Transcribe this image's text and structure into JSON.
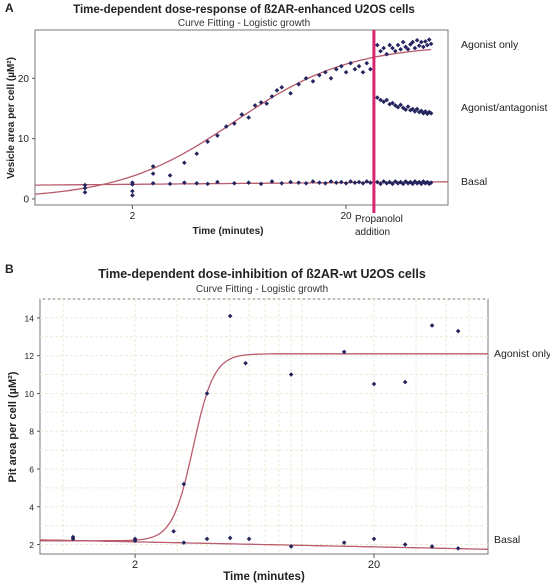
{
  "chart_data": [
    {
      "panel_label": "A",
      "type": "scatter",
      "title": "Time-dependent dose-response of ß2AR-enhanced U2OS cells",
      "subtitle": "Curve Fitting - Logistic growth",
      "xlabel": "Time (minutes)",
      "ylabel": "Vesicle area per cell (µM²)",
      "x_scale": "log",
      "xlim": [
        0.7,
        60
      ],
      "ylim": [
        -1,
        28
      ],
      "x_ticks": [
        2,
        20
      ],
      "y_ticks": [
        0,
        10,
        20
      ],
      "grid": false,
      "marker_color": "#24245e",
      "fit_color": "#b85c6e",
      "event_line": {
        "x": 27,
        "color": "#d6246e",
        "label_line1": "Propanolol",
        "label_line2": "addition"
      },
      "series": [
        {
          "name": "Agonist only",
          "points": [
            [
              1.2,
              1.1
            ],
            [
              1.2,
              2.3
            ],
            [
              2,
              0.6
            ],
            [
              2,
              1.3
            ],
            [
              2,
              2.7
            ],
            [
              2.5,
              4.2
            ],
            [
              2.5,
              5.4
            ],
            [
              3,
              3.9
            ],
            [
              3.5,
              6
            ],
            [
              4,
              7.5
            ],
            [
              4.5,
              9.5
            ],
            [
              5,
              10.5
            ],
            [
              5.5,
              12
            ],
            [
              6,
              12.5
            ],
            [
              6.5,
              14
            ],
            [
              7,
              13.5
            ],
            [
              7.5,
              15.5
            ],
            [
              8,
              16
            ],
            [
              8.5,
              15.8
            ],
            [
              9,
              17
            ],
            [
              9.5,
              18
            ],
            [
              10,
              18.5
            ],
            [
              11,
              17.5
            ],
            [
              12,
              19
            ],
            [
              13,
              20
            ],
            [
              14,
              19.5
            ],
            [
              15,
              20.5
            ],
            [
              16,
              21
            ],
            [
              17,
              20
            ],
            [
              18,
              21.5
            ],
            [
              19,
              22
            ],
            [
              20,
              21
            ],
            [
              21,
              22.5
            ],
            [
              22,
              21.5
            ],
            [
              23,
              22
            ],
            [
              24,
              21
            ],
            [
              25,
              22.5
            ],
            [
              26,
              21.5
            ],
            [
              28,
              25.5
            ],
            [
              29,
              24.5
            ],
            [
              30,
              25
            ],
            [
              31,
              24
            ],
            [
              32,
              25.5
            ],
            [
              33,
              25
            ],
            [
              34,
              24.5
            ],
            [
              35,
              25.5
            ],
            [
              36,
              24.8
            ],
            [
              37,
              26
            ],
            [
              38,
              25.2
            ],
            [
              39,
              24.8
            ],
            [
              40,
              25.6
            ],
            [
              41,
              26
            ],
            [
              42,
              25
            ],
            [
              43,
              26.3
            ],
            [
              44,
              25.4
            ],
            [
              45,
              26
            ],
            [
              46,
              25.2
            ],
            [
              47,
              26.1
            ],
            [
              48,
              25.5
            ],
            [
              49,
              26.4
            ],
            [
              50,
              25.7
            ]
          ],
          "fit": {
            "type": "logistic",
            "lower": 0,
            "upper": 25.6,
            "x50": 6,
            "slope": 1.6,
            "x_range": [
              0.7,
              50
            ]
          }
        },
        {
          "name": "Agonist/antagonist",
          "points": [
            [
              28,
              16.8
            ],
            [
              29,
              16.4
            ],
            [
              30,
              16.1
            ],
            [
              31,
              16.4
            ],
            [
              32,
              15.7
            ],
            [
              33,
              15.9
            ],
            [
              34,
              15.5
            ],
            [
              35,
              15.2
            ],
            [
              36,
              15.6
            ],
            [
              37,
              15.1
            ],
            [
              38,
              14.8
            ],
            [
              39,
              15.3
            ],
            [
              40,
              14.7
            ],
            [
              41,
              14.9
            ],
            [
              42,
              14.5
            ],
            [
              43,
              14.9
            ],
            [
              44,
              14.4
            ],
            [
              45,
              14.6
            ],
            [
              46,
              14.2
            ],
            [
              47,
              14.5
            ],
            [
              48,
              14.1
            ],
            [
              49,
              14.4
            ],
            [
              50,
              14.2
            ]
          ]
        },
        {
          "name": "Basal",
          "points": [
            [
              1.2,
              1.8
            ],
            [
              2,
              2.4
            ],
            [
              2.5,
              2.6
            ],
            [
              3,
              2.5
            ],
            [
              3.5,
              2.7
            ],
            [
              4,
              2.6
            ],
            [
              4.5,
              2.5
            ],
            [
              5,
              2.8
            ],
            [
              6,
              2.6
            ],
            [
              7,
              2.7
            ],
            [
              8,
              2.5
            ],
            [
              9,
              2.9
            ],
            [
              10,
              2.6
            ],
            [
              11,
              2.8
            ],
            [
              12,
              2.7
            ],
            [
              13,
              2.6
            ],
            [
              14,
              2.9
            ],
            [
              15,
              2.7
            ],
            [
              16,
              2.6
            ],
            [
              17,
              2.9
            ],
            [
              18,
              2.7
            ],
            [
              19,
              2.8
            ],
            [
              20,
              2.6
            ],
            [
              21,
              2.9
            ],
            [
              22,
              2.7
            ],
            [
              23,
              2.8
            ],
            [
              24,
              2.6
            ],
            [
              25,
              2.9
            ],
            [
              26,
              2.7
            ],
            [
              28,
              2.8
            ],
            [
              29,
              2.5
            ],
            [
              30,
              2.9
            ],
            [
              31,
              2.6
            ],
            [
              32,
              2.8
            ],
            [
              33,
              2.5
            ],
            [
              34,
              2.9
            ],
            [
              35,
              2.6
            ],
            [
              36,
              2.8
            ],
            [
              37,
              2.5
            ],
            [
              38,
              2.9
            ],
            [
              39,
              2.6
            ],
            [
              40,
              2.8
            ],
            [
              41,
              2.5
            ],
            [
              42,
              2.9
            ],
            [
              43,
              2.6
            ],
            [
              44,
              2.8
            ],
            [
              45,
              2.5
            ],
            [
              46,
              2.9
            ],
            [
              47,
              2.6
            ],
            [
              48,
              2.8
            ],
            [
              49,
              2.5
            ],
            [
              50,
              2.7
            ]
          ],
          "fit": {
            "type": "line",
            "y0": 2.3,
            "y1": 2.85,
            "x_range": [
              0.7,
              60
            ]
          }
        }
      ]
    },
    {
      "panel_label": "B",
      "type": "scatter",
      "title": "Time-dependent dose-inhibition of ß2AR-wt U2OS cells",
      "subtitle": "Curve Fitting - Logistic growth",
      "xlabel": "Time (minutes)",
      "ylabel": "Pit area per cell (µM²)",
      "x_scale": "log",
      "xlim": [
        0.8,
        60
      ],
      "ylim": [
        1.5,
        15
      ],
      "x_ticks": [
        2,
        20
      ],
      "y_ticks": [
        2,
        4,
        6,
        8,
        10,
        12,
        14
      ],
      "grid": true,
      "marker_color": "#24245e",
      "fit_color": "#b85c6e",
      "series": [
        {
          "name": "Agonist only",
          "points": [
            [
              1.1,
              2.3
            ],
            [
              2,
              2.2
            ],
            [
              2.9,
              2.7
            ],
            [
              3.2,
              5.2
            ],
            [
              4,
              10
            ],
            [
              5,
              14.1
            ],
            [
              5.8,
              11.6
            ],
            [
              9,
              11
            ],
            [
              15,
              12.2
            ],
            [
              20,
              10.5
            ],
            [
              27,
              10.6
            ],
            [
              35,
              13.6
            ],
            [
              45,
              13.3
            ]
          ],
          "fit": {
            "type": "logistic",
            "lower": 2.2,
            "upper": 12.1,
            "x50": 3.5,
            "slope": 10,
            "x_range": [
              0.8,
              60
            ]
          }
        },
        {
          "name": "Basal",
          "points": [
            [
              1.1,
              2.4
            ],
            [
              2,
              2.3
            ],
            [
              3.2,
              2.1
            ],
            [
              4,
              2.3
            ],
            [
              5,
              2.35
            ],
            [
              6,
              2.3
            ],
            [
              9,
              1.9
            ],
            [
              15,
              2.1
            ],
            [
              20,
              2.3
            ],
            [
              27,
              2.0
            ],
            [
              35,
              1.9
            ],
            [
              45,
              1.8
            ]
          ],
          "fit": {
            "type": "line",
            "y0": 2.25,
            "y1": 1.75,
            "x_range": [
              0.8,
              60
            ]
          }
        }
      ]
    }
  ]
}
